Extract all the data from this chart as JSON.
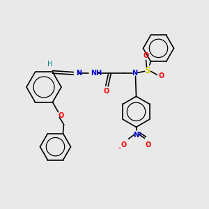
{
  "bg_color": "#e9e9e9",
  "bond_color": "#000000",
  "atom_colors": {
    "N": "#0000cc",
    "O": "#ff0000",
    "S": "#cccc00",
    "H_imine": "#008080",
    "C": "#000000"
  },
  "figsize": [
    3.0,
    3.0
  ],
  "dpi": 100,
  "lw": 1.2,
  "fs": 7.0
}
